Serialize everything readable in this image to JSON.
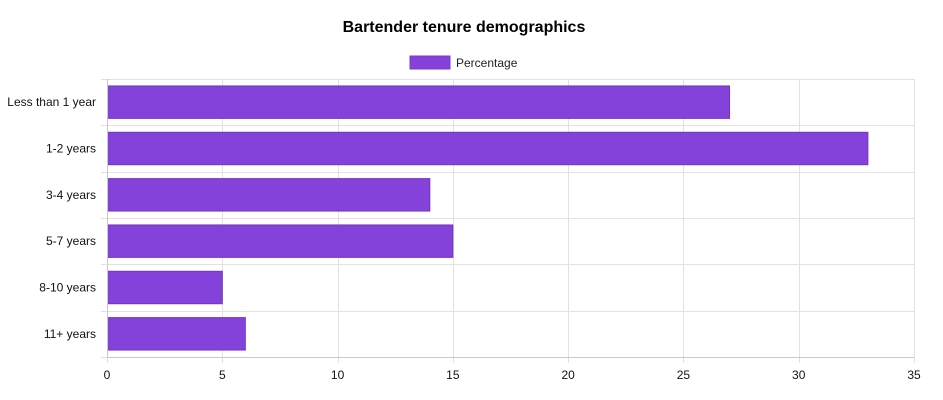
{
  "chart_data": {
    "type": "bar",
    "orientation": "horizontal",
    "title": "Bartender tenure demographics",
    "xlabel": "",
    "ylabel": "",
    "categories": [
      "Less than 1 year",
      "1-2 years",
      "3-4 years",
      "5-7 years",
      "8-10 years",
      "11+ years"
    ],
    "series": [
      {
        "name": "Percentage",
        "values": [
          27,
          33,
          14,
          15,
          5,
          6
        ],
        "color": "#8542db"
      }
    ],
    "xlim": [
      0,
      35
    ],
    "xticks": [
      0,
      5,
      10,
      15,
      20,
      25,
      30,
      35
    ],
    "grid": true,
    "legend": "top-center"
  }
}
